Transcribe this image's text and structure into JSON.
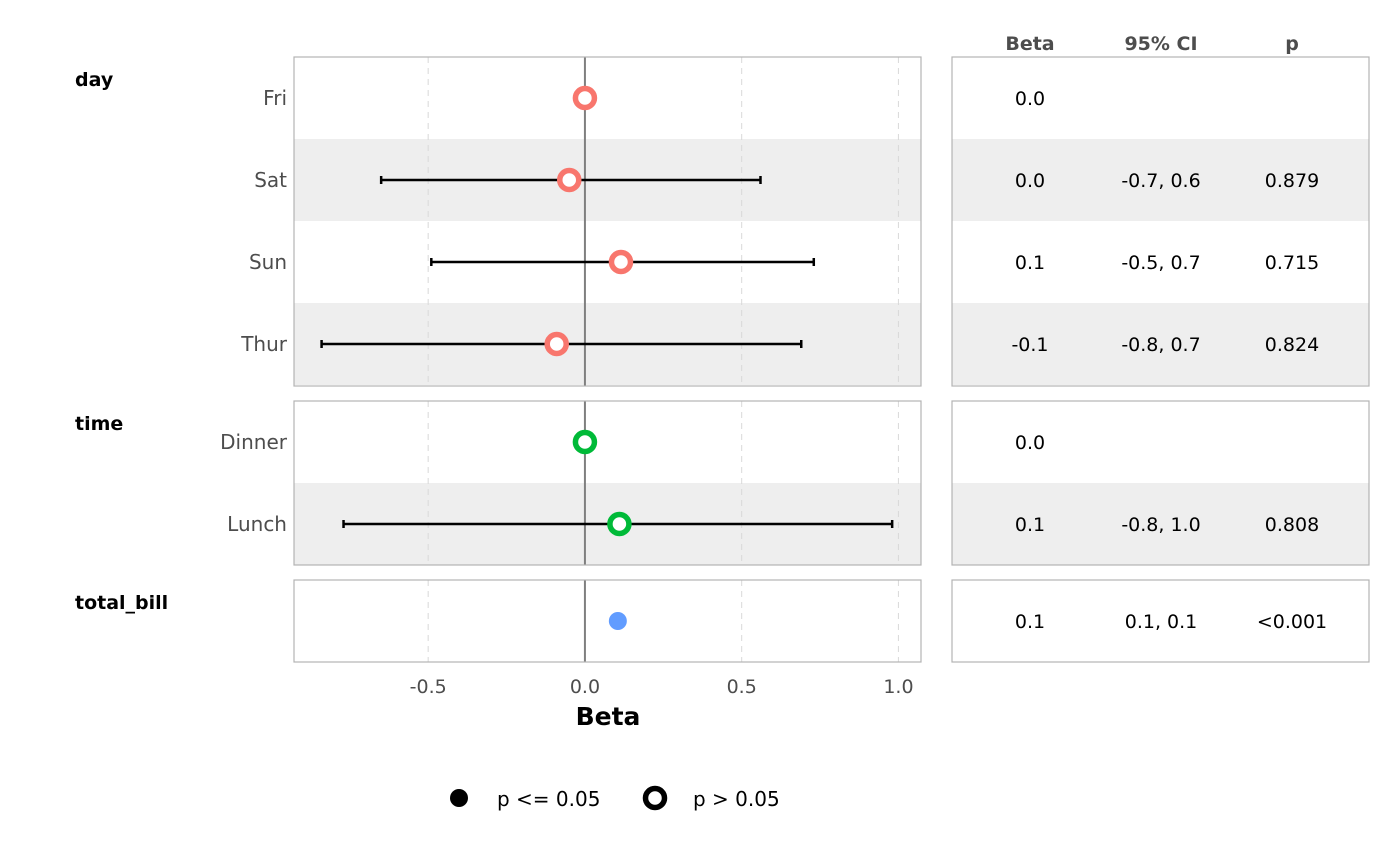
{
  "chart_data": {
    "type": "forest",
    "xlabel": "Beta",
    "xlim": [
      -0.928,
      1.072
    ],
    "xticks": [
      -0.5,
      0.0,
      0.5,
      1.0
    ],
    "xtick_labels": [
      "-0.5",
      "0.0",
      "0.5",
      "1.0"
    ],
    "reference_line": 0,
    "grid": "vertical dashed",
    "table_headers": [
      "Beta",
      "95% CI",
      "p"
    ],
    "groups": [
      {
        "name": "day",
        "color": "#F8766D",
        "rows": [
          {
            "label": "Fri",
            "beta": 0.0,
            "ci": null,
            "significant": false,
            "beta_text": "0.0",
            "ci_text": "",
            "p_text": ""
          },
          {
            "label": "Sat",
            "beta": -0.05,
            "ci": [
              -0.65,
              0.56
            ],
            "significant": false,
            "beta_text": "0.0",
            "ci_text": "-0.7, 0.6",
            "p_text": "0.879"
          },
          {
            "label": "Sun",
            "beta": 0.115,
            "ci": [
              -0.49,
              0.73
            ],
            "significant": false,
            "beta_text": "0.1",
            "ci_text": "-0.5, 0.7",
            "p_text": "0.715"
          },
          {
            "label": "Thur",
            "beta": -0.09,
            "ci": [
              -0.84,
              0.69
            ],
            "significant": false,
            "beta_text": "-0.1",
            "ci_text": "-0.8, 0.7",
            "p_text": "0.824"
          }
        ]
      },
      {
        "name": "time",
        "color": "#00BA38",
        "rows": [
          {
            "label": "Dinner",
            "beta": 0.0,
            "ci": null,
            "significant": false,
            "beta_text": "0.0",
            "ci_text": "",
            "p_text": ""
          },
          {
            "label": "Lunch",
            "beta": 0.11,
            "ci": [
              -0.77,
              0.98
            ],
            "significant": false,
            "beta_text": "0.1",
            "ci_text": "-0.8, 1.0",
            "p_text": "0.808"
          }
        ]
      },
      {
        "name": "total_bill",
        "color": "#619CFF",
        "rows": [
          {
            "label": "",
            "beta": 0.105,
            "ci": [
              0.09,
              0.12
            ],
            "significant": true,
            "beta_text": "0.1",
            "ci_text": "0.1, 0.1",
            "p_text": "<0.001"
          }
        ]
      }
    ],
    "legend": {
      "placement": "bottom",
      "items": [
        {
          "label": "p <= 0.05",
          "shape": "filled-circle"
        },
        {
          "label": "p > 0.05",
          "shape": "open-circle"
        }
      ]
    }
  }
}
